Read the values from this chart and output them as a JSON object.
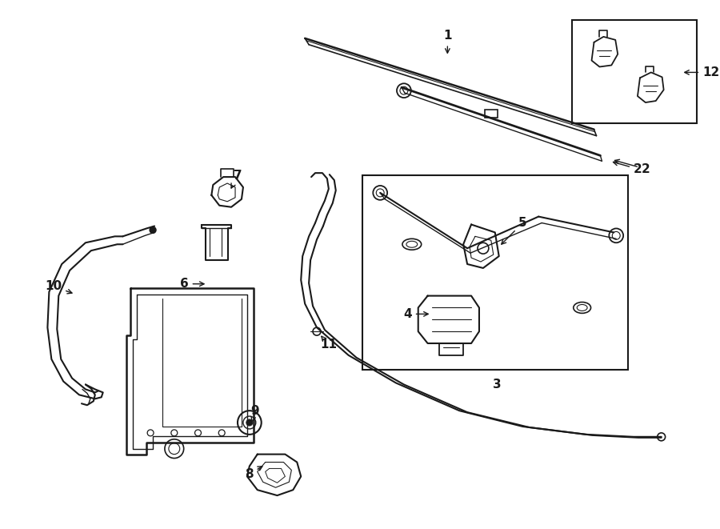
{
  "bg_color": "#ffffff",
  "line_color": "#1a1a1a",
  "fig_width": 9.0,
  "fig_height": 6.61,
  "lw": 1.3,
  "label_fontsize": 11
}
